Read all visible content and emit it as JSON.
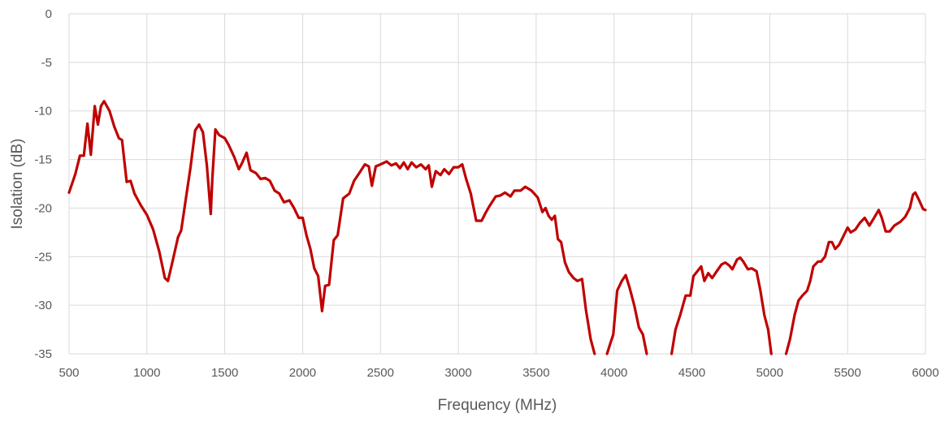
{
  "chart_data": {
    "type": "line",
    "title": "",
    "xlabel": "Frequency (MHz)",
    "ylabel": "Isolation (dB)",
    "xlim": [
      500,
      6000
    ],
    "ylim": [
      -35,
      0
    ],
    "x_ticks": [
      500,
      1000,
      1500,
      2000,
      2500,
      3000,
      3500,
      4000,
      4500,
      5000,
      5500,
      6000
    ],
    "y_ticks": [
      0,
      -5,
      -10,
      -15,
      -20,
      -25,
      -30,
      -35
    ],
    "grid": true,
    "legend": "none",
    "series": [
      {
        "color": "#c00000",
        "points": [
          [
            500,
            -18.4
          ],
          [
            540,
            -16.5
          ],
          [
            570,
            -14.6
          ],
          [
            595,
            -14.6
          ],
          [
            618,
            -11.3
          ],
          [
            640,
            -14.5
          ],
          [
            665,
            -9.5
          ],
          [
            685,
            -11.4
          ],
          [
            705,
            -9.5
          ],
          [
            725,
            -9.0
          ],
          [
            760,
            -10.0
          ],
          [
            790,
            -11.6
          ],
          [
            820,
            -12.8
          ],
          [
            840,
            -13.0
          ],
          [
            870,
            -17.3
          ],
          [
            895,
            -17.2
          ],
          [
            920,
            -18.5
          ],
          [
            960,
            -19.7
          ],
          [
            1000,
            -20.7
          ],
          [
            1040,
            -22.2
          ],
          [
            1080,
            -24.5
          ],
          [
            1115,
            -27.2
          ],
          [
            1135,
            -27.5
          ],
          [
            1160,
            -25.8
          ],
          [
            1200,
            -23.0
          ],
          [
            1220,
            -22.3
          ],
          [
            1255,
            -18.5
          ],
          [
            1280,
            -15.8
          ],
          [
            1310,
            -12.0
          ],
          [
            1335,
            -11.4
          ],
          [
            1360,
            -12.2
          ],
          [
            1385,
            -15.6
          ],
          [
            1410,
            -20.6
          ],
          [
            1420,
            -17.0
          ],
          [
            1440,
            -11.9
          ],
          [
            1465,
            -12.5
          ],
          [
            1500,
            -12.8
          ],
          [
            1525,
            -13.5
          ],
          [
            1560,
            -14.7
          ],
          [
            1590,
            -16.0
          ],
          [
            1610,
            -15.4
          ],
          [
            1640,
            -14.3
          ],
          [
            1665,
            -16.1
          ],
          [
            1700,
            -16.4
          ],
          [
            1730,
            -17.0
          ],
          [
            1760,
            -16.9
          ],
          [
            1790,
            -17.2
          ],
          [
            1820,
            -18.2
          ],
          [
            1850,
            -18.5
          ],
          [
            1880,
            -19.4
          ],
          [
            1915,
            -19.2
          ],
          [
            1945,
            -20.0
          ],
          [
            1975,
            -21.0
          ],
          [
            2000,
            -21.0
          ],
          [
            2025,
            -22.8
          ],
          [
            2050,
            -24.2
          ],
          [
            2075,
            -26.2
          ],
          [
            2100,
            -27.0
          ],
          [
            2125,
            -30.6
          ],
          [
            2145,
            -28.0
          ],
          [
            2170,
            -27.9
          ],
          [
            2200,
            -23.3
          ],
          [
            2225,
            -22.8
          ],
          [
            2260,
            -19.0
          ],
          [
            2300,
            -18.5
          ],
          [
            2330,
            -17.2
          ],
          [
            2360,
            -16.5
          ],
          [
            2400,
            -15.5
          ],
          [
            2425,
            -15.7
          ],
          [
            2445,
            -17.7
          ],
          [
            2470,
            -15.7
          ],
          [
            2500,
            -15.5
          ],
          [
            2540,
            -15.2
          ],
          [
            2570,
            -15.6
          ],
          [
            2600,
            -15.4
          ],
          [
            2625,
            -15.9
          ],
          [
            2650,
            -15.3
          ],
          [
            2675,
            -16.0
          ],
          [
            2700,
            -15.3
          ],
          [
            2730,
            -15.8
          ],
          [
            2760,
            -15.5
          ],
          [
            2790,
            -16.0
          ],
          [
            2810,
            -15.6
          ],
          [
            2830,
            -17.8
          ],
          [
            2855,
            -16.2
          ],
          [
            2885,
            -16.6
          ],
          [
            2910,
            -16.0
          ],
          [
            2940,
            -16.5
          ],
          [
            2970,
            -15.8
          ],
          [
            3000,
            -15.8
          ],
          [
            3025,
            -15.5
          ],
          [
            3050,
            -17.0
          ],
          [
            3080,
            -18.5
          ],
          [
            3115,
            -21.3
          ],
          [
            3150,
            -21.3
          ],
          [
            3175,
            -20.5
          ],
          [
            3200,
            -19.8
          ],
          [
            3240,
            -18.8
          ],
          [
            3270,
            -18.7
          ],
          [
            3300,
            -18.4
          ],
          [
            3335,
            -18.8
          ],
          [
            3360,
            -18.2
          ],
          [
            3400,
            -18.2
          ],
          [
            3430,
            -17.8
          ],
          [
            3470,
            -18.2
          ],
          [
            3510,
            -18.9
          ],
          [
            3540,
            -20.4
          ],
          [
            3560,
            -20.0
          ],
          [
            3580,
            -20.8
          ],
          [
            3600,
            -21.2
          ],
          [
            3620,
            -20.8
          ],
          [
            3640,
            -23.2
          ],
          [
            3660,
            -23.5
          ],
          [
            3685,
            -25.6
          ],
          [
            3710,
            -26.6
          ],
          [
            3740,
            -27.2
          ],
          [
            3765,
            -27.5
          ],
          [
            3795,
            -27.3
          ],
          [
            3820,
            -30.5
          ],
          [
            3850,
            -33.5
          ],
          [
            3875,
            -35.0
          ]
        ]
      },
      {
        "color": "#c00000",
        "points": [
          [
            3955,
            -35.0
          ],
          [
            3975,
            -34.0
          ],
          [
            3995,
            -33.0
          ],
          [
            4020,
            -28.5
          ],
          [
            4050,
            -27.5
          ],
          [
            4075,
            -26.9
          ],
          [
            4100,
            -28.2
          ],
          [
            4130,
            -30.0
          ],
          [
            4160,
            -32.3
          ],
          [
            4185,
            -33.0
          ],
          [
            4210,
            -35.0
          ]
        ]
      },
      {
        "color": "#c00000",
        "points": [
          [
            4370,
            -35.0
          ],
          [
            4395,
            -32.5
          ],
          [
            4425,
            -31.0
          ],
          [
            4460,
            -29.0
          ],
          [
            4490,
            -29.0
          ],
          [
            4510,
            -27.0
          ],
          [
            4535,
            -26.5
          ],
          [
            4560,
            -26.0
          ],
          [
            4580,
            -27.5
          ],
          [
            4605,
            -26.7
          ],
          [
            4630,
            -27.2
          ],
          [
            4660,
            -26.5
          ],
          [
            4690,
            -25.8
          ],
          [
            4715,
            -25.6
          ],
          [
            4740,
            -25.9
          ],
          [
            4760,
            -26.3
          ],
          [
            4790,
            -25.3
          ],
          [
            4810,
            -25.1
          ],
          [
            4830,
            -25.5
          ],
          [
            4860,
            -26.3
          ],
          [
            4885,
            -26.2
          ],
          [
            4915,
            -26.5
          ],
          [
            4940,
            -28.5
          ],
          [
            4965,
            -31.0
          ],
          [
            4990,
            -32.5
          ],
          [
            5010,
            -35.0
          ]
        ]
      },
      {
        "color": "#c00000",
        "points": [
          [
            5105,
            -35.0
          ],
          [
            5130,
            -33.5
          ],
          [
            5160,
            -31.0
          ],
          [
            5185,
            -29.5
          ],
          [
            5210,
            -29.0
          ],
          [
            5240,
            -28.5
          ],
          [
            5260,
            -27.5
          ],
          [
            5280,
            -26.0
          ],
          [
            5310,
            -25.5
          ],
          [
            5330,
            -25.5
          ],
          [
            5355,
            -25.0
          ],
          [
            5380,
            -23.5
          ],
          [
            5400,
            -23.5
          ],
          [
            5420,
            -24.2
          ],
          [
            5445,
            -23.8
          ],
          [
            5470,
            -23.0
          ],
          [
            5500,
            -22.0
          ],
          [
            5520,
            -22.5
          ],
          [
            5550,
            -22.2
          ],
          [
            5580,
            -21.5
          ],
          [
            5610,
            -21.0
          ],
          [
            5640,
            -21.8
          ],
          [
            5670,
            -21.0
          ],
          [
            5700,
            -20.2
          ],
          [
            5720,
            -21.0
          ],
          [
            5745,
            -22.4
          ],
          [
            5770,
            -22.4
          ],
          [
            5800,
            -21.8
          ],
          [
            5840,
            -21.4
          ],
          [
            5870,
            -20.9
          ],
          [
            5900,
            -20.0
          ],
          [
            5920,
            -18.6
          ],
          [
            5935,
            -18.4
          ],
          [
            5960,
            -19.2
          ],
          [
            5985,
            -20.1
          ],
          [
            6000,
            -20.2
          ]
        ]
      }
    ]
  }
}
